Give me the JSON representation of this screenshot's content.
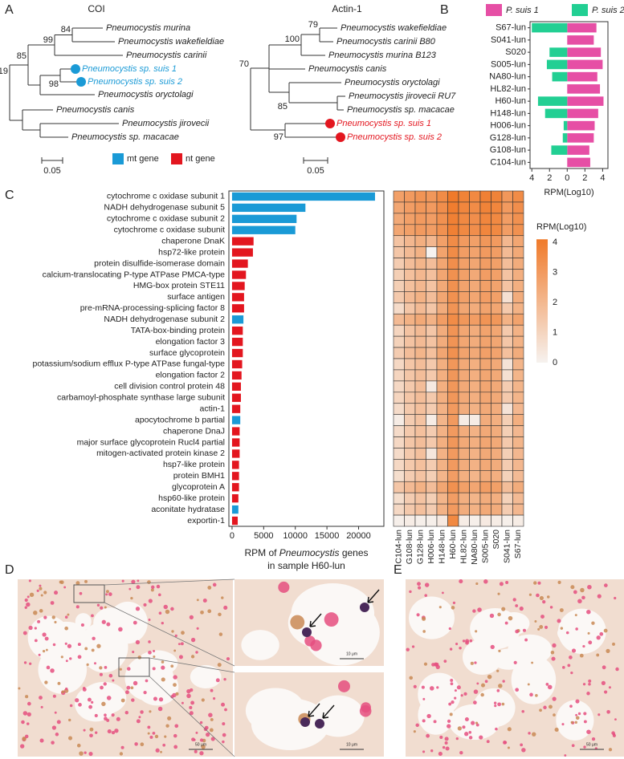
{
  "panel_labels": [
    "A",
    "B",
    "C",
    "D",
    "E"
  ],
  "trees": [
    {
      "title": "COI",
      "leaves": [
        "Pneumocystis murina",
        "Pneumocystis wakefieldiae",
        "Pneumocystis carinii",
        "Pneumocystis sp. suis 1",
        "Pneumocystis sp. suis 2",
        "Pneumocystis oryctolagi",
        "Pneumocystis canis",
        "Pneumocystis jirovecii",
        "Pneumocystis sp. macacae"
      ],
      "bootstrap": [
        84,
        99,
        85,
        98,
        19
      ],
      "scale_bar": "0.05",
      "highlighted": [
        3,
        4
      ],
      "highlight_color": "#1a9ad6"
    },
    {
      "title": "Actin-1",
      "leaves": [
        "Pneumocystis wakefieldiae",
        "Pneumocystis carinii B80",
        "Pneumocystis murina B123",
        "Pneumocystis canis",
        "Pneumocystis oryctolagi",
        "Pneumocystis jirovecii RU7",
        "Pneumocystis sp. macacae",
        "Pneumocystis sp. suis 1",
        "Pneumocystis sp. suis 2"
      ],
      "bootstrap": [
        79,
        100,
        70,
        85,
        97
      ],
      "scale_bar": "0.05",
      "highlighted": [
        7,
        8
      ],
      "highlight_color": "#e3161f"
    }
  ],
  "gene_legend": [
    {
      "label": "mt gene",
      "color": "#1a9ad6"
    },
    {
      "label": "nt gene",
      "color": "#e3161f"
    }
  ],
  "chart_data": [
    {
      "type": "diverging_bar",
      "categories": [
        "S67-lun",
        "S041-lun",
        "S020",
        "S005-lun",
        "NA80-lun",
        "HL82-lun",
        "H60-lun",
        "H148-lun",
        "H006-lun",
        "G128-lun",
        "G108-lun",
        "C104-lun"
      ],
      "series": [
        {
          "name": "P. suis 1",
          "color": "#e64fa5",
          "side": "right",
          "values": [
            3.3,
            3.0,
            3.8,
            4.0,
            3.4,
            3.7,
            4.1,
            3.5,
            3.1,
            3.0,
            2.5,
            2.6
          ]
        },
        {
          "name": "P. suis 2",
          "color": "#22cf93",
          "side": "left",
          "values": [
            4.0,
            0,
            2.0,
            2.3,
            1.7,
            0,
            3.3,
            2.5,
            0.4,
            0.5,
            1.8,
            0
          ]
        }
      ],
      "xlim": [
        -4.2,
        4.6
      ],
      "xticks": [
        {
          "value": -4,
          "label": "4"
        },
        {
          "value": -2,
          "label": "2"
        },
        0,
        2,
        4
      ],
      "xlabel": "RPM(Log10)"
    },
    {
      "type": "hbar",
      "categories": [
        "cytochrome c oxidase subunit 1",
        "NADH dehydrogenase subunit 5",
        "cytochrome c oxidase subunit 2",
        "cytochrome c oxidase subunit",
        "chaperone DnaK",
        "hsp72-like protein",
        "protein disulfide-isomerase domain",
        "calcium-translocating P-type ATPase PMCA-type",
        "HMG-box protein STE11",
        "surface antigen",
        "pre-mRNA-processing-splicing factor 8",
        "NADH dehydrogenase subunit 2",
        "TATA-box-binding protein",
        "elongation factor 3",
        "surface glycoprotein",
        "potassium/sodium efflux P-type ATPase fungal-type",
        "elongation factor 2",
        "cell division control protein 48",
        "carbamoyl-phosphate synthase large subunit",
        "actin-1",
        "apocytochrome b partial",
        "chaperone DnaJ",
        "major surface glycoprotein Rucl4 partial",
        "mitogen-activated protein kinase 2",
        "hsp7-like protein",
        "protein BMH1",
        "glycoprotein A",
        "hsp60-like protein",
        "aconitate hydratase",
        "exportin-1"
      ],
      "values": [
        22600,
        11600,
        10200,
        10000,
        3400,
        3300,
        2500,
        2200,
        2000,
        1900,
        1900,
        1800,
        1700,
        1700,
        1700,
        1600,
        1500,
        1400,
        1400,
        1300,
        1300,
        1200,
        1200,
        1200,
        1100,
        1100,
        1100,
        1000,
        1000,
        900
      ],
      "colors": [
        "#1a9ad6",
        "#1a9ad6",
        "#1a9ad6",
        "#1a9ad6",
        "#e3161f",
        "#e3161f",
        "#e3161f",
        "#e3161f",
        "#e3161f",
        "#e3161f",
        "#e3161f",
        "#1a9ad6",
        "#e3161f",
        "#e3161f",
        "#e3161f",
        "#e3161f",
        "#e3161f",
        "#e3161f",
        "#e3161f",
        "#e3161f",
        "#1a9ad6",
        "#e3161f",
        "#e3161f",
        "#e3161f",
        "#e3161f",
        "#e3161f",
        "#e3161f",
        "#e3161f",
        "#1a9ad6",
        "#e3161f"
      ],
      "xlim": [
        -500,
        24000
      ],
      "xticks": [
        0,
        5000,
        10000,
        15000,
        20000
      ],
      "xlabel": [
        "RPM of ",
        "Pneumocystis",
        " genes",
        "in sample H60-lun"
      ]
    },
    {
      "type": "heatmap",
      "x": [
        "C104-lun",
        "G108-lun",
        "G128-lun",
        "H006-lun",
        "H148-lun",
        "H60-lun",
        "HL82-lun",
        "NA80-lun",
        "S005-lun",
        "S020",
        "S041-lun",
        "S67-lun"
      ],
      "values": [
        [
          2.8,
          3.0,
          3.2,
          3.1,
          3.5,
          4.1,
          3.8,
          3.6,
          3.9,
          3.8,
          3.1,
          3.5
        ],
        [
          2.6,
          2.9,
          3.1,
          3.0,
          3.4,
          4.0,
          3.7,
          3.5,
          3.8,
          3.7,
          3.0,
          3.4
        ],
        [
          2.5,
          2.8,
          3.0,
          2.9,
          3.3,
          3.9,
          3.6,
          3.4,
          3.7,
          3.6,
          2.9,
          3.3
        ],
        [
          2.6,
          2.8,
          3.0,
          2.9,
          3.3,
          3.9,
          3.6,
          3.4,
          3.7,
          3.6,
          2.9,
          3.3
        ],
        [
          1.6,
          2.0,
          2.3,
          2.0,
          2.8,
          3.5,
          3.0,
          2.8,
          3.1,
          3.0,
          2.0,
          2.6
        ],
        [
          1.5,
          1.9,
          2.2,
          0,
          2.7,
          3.5,
          2.9,
          2.7,
          3.0,
          2.9,
          1.9,
          2.5
        ],
        [
          1.3,
          1.8,
          2.1,
          1.8,
          2.6,
          3.4,
          2.8,
          2.6,
          2.9,
          2.8,
          1.8,
          2.4
        ],
        [
          1.2,
          1.7,
          2.0,
          1.7,
          2.6,
          3.3,
          2.8,
          2.5,
          2.9,
          2.8,
          1.6,
          2.3
        ],
        [
          1.2,
          1.7,
          2.0,
          1.6,
          2.5,
          3.3,
          2.7,
          2.5,
          2.8,
          2.7,
          1.6,
          2.3
        ],
        [
          1.4,
          1.9,
          2.2,
          1.8,
          2.6,
          3.3,
          2.8,
          2.6,
          2.9,
          2.8,
          0.6,
          2.4
        ],
        [
          0.8,
          1.5,
          1.9,
          1.5,
          2.4,
          3.2,
          2.6,
          2.4,
          2.7,
          2.6,
          1.4,
          2.2
        ],
        [
          1.9,
          2.2,
          2.5,
          2.2,
          2.9,
          3.5,
          3.1,
          2.9,
          3.2,
          3.1,
          2.2,
          2.7
        ],
        [
          1.0,
          1.6,
          1.9,
          1.5,
          2.4,
          3.2,
          2.6,
          2.4,
          2.7,
          2.6,
          1.4,
          2.2
        ],
        [
          1.1,
          1.6,
          1.9,
          1.6,
          2.4,
          3.2,
          2.6,
          2.4,
          2.7,
          2.6,
          1.5,
          2.2
        ],
        [
          1.3,
          1.8,
          2.1,
          1.7,
          2.6,
          3.3,
          2.7,
          2.5,
          2.8,
          2.7,
          1.7,
          2.4
        ],
        [
          0.9,
          1.5,
          1.8,
          1.4,
          2.3,
          3.1,
          2.5,
          2.3,
          2.6,
          2.5,
          0.5,
          2.1
        ],
        [
          1.0,
          1.5,
          1.8,
          1.4,
          2.3,
          3.1,
          2.5,
          2.3,
          2.6,
          2.5,
          0.6,
          2.1
        ],
        [
          0.9,
          1.4,
          1.8,
          0.3,
          2.3,
          3.1,
          2.5,
          2.3,
          2.6,
          2.5,
          1.3,
          2.1
        ],
        [
          1.0,
          1.5,
          1.8,
          1.4,
          2.3,
          3.1,
          2.5,
          2.3,
          2.6,
          2.5,
          1.4,
          2.1
        ],
        [
          0.8,
          1.4,
          1.7,
          1.3,
          2.2,
          3.0,
          2.4,
          2.2,
          2.5,
          2.4,
          0.5,
          2.0
        ],
        [
          0.2,
          1.3,
          1.6,
          0.2,
          2.1,
          3.0,
          0.2,
          0.2,
          2.4,
          2.3,
          1.2,
          2.3
        ],
        [
          0.8,
          1.4,
          1.7,
          1.3,
          2.2,
          3.0,
          2.4,
          2.2,
          2.5,
          2.4,
          1.2,
          2.0
        ],
        [
          0.9,
          1.5,
          1.8,
          1.4,
          2.3,
          3.1,
          2.5,
          2.3,
          2.6,
          2.5,
          1.4,
          2.1
        ],
        [
          0.8,
          1.4,
          1.7,
          0.4,
          2.2,
          3.0,
          2.4,
          2.2,
          2.5,
          2.4,
          1.2,
          2.0
        ],
        [
          0.9,
          1.4,
          1.7,
          1.3,
          2.2,
          3.0,
          2.4,
          2.2,
          2.5,
          2.4,
          1.3,
          2.0
        ],
        [
          0.7,
          1.3,
          1.6,
          1.2,
          2.1,
          2.9,
          2.3,
          2.1,
          2.4,
          2.3,
          1.1,
          1.9
        ],
        [
          1.5,
          1.9,
          2.2,
          1.8,
          2.6,
          3.3,
          2.8,
          2.6,
          2.9,
          2.8,
          1.8,
          2.4
        ],
        [
          0.7,
          1.3,
          1.6,
          1.2,
          2.1,
          2.9,
          2.3,
          2.1,
          2.4,
          2.3,
          1.1,
          1.9
        ],
        [
          0.9,
          1.4,
          1.7,
          1.3,
          2.2,
          3.0,
          2.4,
          2.2,
          2.5,
          2.4,
          1.3,
          2.0
        ],
        [
          0.1,
          0.2,
          0.1,
          0.1,
          0.3,
          3.6,
          0.2,
          0.1,
          0.3,
          0.2,
          0.1,
          0.2
        ]
      ],
      "zlim": [
        0,
        4.1
      ],
      "zticks": [
        0,
        1,
        2,
        3,
        4
      ],
      "colorbar_title": "RPM(Log10)",
      "colors": [
        "#f6f2ef",
        "#f07a2a"
      ]
    }
  ],
  "micrographs": {
    "D_main_scale": "50 μm",
    "D_top_scale": "10 μm",
    "D_bottom_scale": "10 μm",
    "E_scale": "50 μm"
  }
}
